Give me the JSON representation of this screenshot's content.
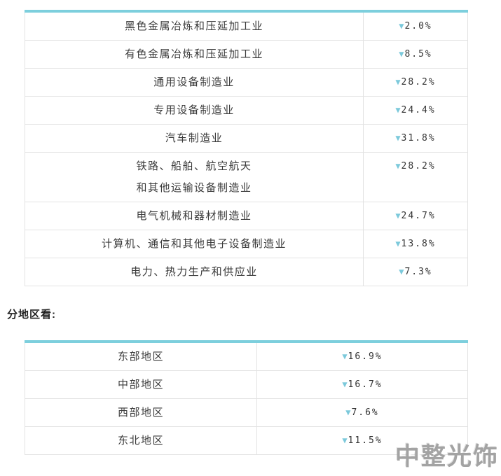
{
  "colors": {
    "accent": "#7dcfdd",
    "triangle": "#7cc9db",
    "row_border": "#e2e2e2",
    "label_text": "#3a3a3a",
    "value_text": "#333333",
    "heading_text": "#222222",
    "watermark_text": "#a3a3a3"
  },
  "icons": {
    "down_triangle": "▼"
  },
  "industry_table": {
    "rows": [
      {
        "label": "黑色金属冶炼和压延加工业",
        "value": "2.0%"
      },
      {
        "label": "有色金属冶炼和压延加工业",
        "value": "8.5%"
      },
      {
        "label": "通用设备制造业",
        "value": "28.2%"
      },
      {
        "label": "专用设备制造业",
        "value": "24.4%"
      },
      {
        "label": "汽车制造业",
        "value": "31.8%"
      },
      {
        "label": "铁路、船舶、航空航天\n和其他运输设备制造业",
        "value": "28.2%"
      },
      {
        "label": "电气机械和器材制造业",
        "value": "24.7%"
      },
      {
        "label": "计算机、通信和其他电子设备制造业",
        "value": "13.8%"
      },
      {
        "label": "电力、热力生产和供应业",
        "value": "7.3%"
      }
    ]
  },
  "section_heading": "分地区看:",
  "region_table": {
    "rows": [
      {
        "label": "东部地区",
        "value": "16.9%"
      },
      {
        "label": "中部地区",
        "value": "16.7%"
      },
      {
        "label": "西部地区",
        "value": "7.6%"
      },
      {
        "label": "东北地区",
        "value": "11.5%"
      }
    ]
  },
  "watermark": "中整光饰"
}
